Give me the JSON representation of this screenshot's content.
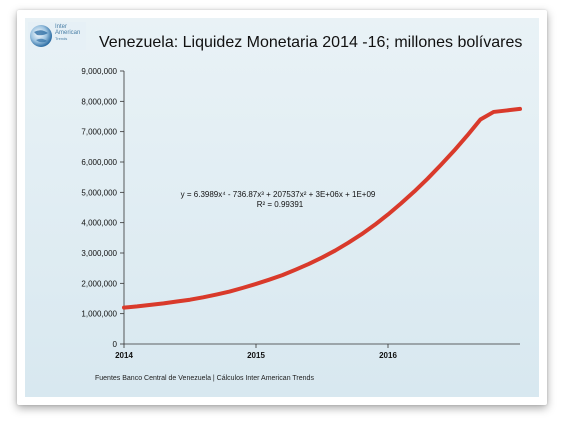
{
  "logo": {
    "lines": [
      "Inter",
      "American",
      "Trends"
    ]
  },
  "chart_data": {
    "type": "line",
    "title": "Venezuela: Liquidez Monetaria 2014 -16; millones bolívares",
    "xlabel": "",
    "ylabel": "",
    "ylim": [
      0,
      9000000
    ],
    "xlim": [
      2014,
      2017.0
    ],
    "yticks": [
      "0",
      "1,000,000",
      "2,000,000",
      "3,000,000",
      "4,000,000",
      "5,000,000",
      "6,000,000",
      "7,000,000",
      "8,000,000",
      "9,000,000"
    ],
    "ytick_values": [
      0,
      1000000,
      2000000,
      3000000,
      4000000,
      5000000,
      6000000,
      7000000,
      8000000,
      9000000
    ],
    "xticks": [
      "2014",
      "2015",
      "2016"
    ],
    "xtick_values": [
      2014,
      2015,
      2016
    ],
    "grid": false,
    "trendline": {
      "equation": "y = 6.3989x⁴ - 736.87x³ + 207537x² + 3E+06x + 1E+09",
      "r_squared": "R² = 0.99391",
      "color": "#d93a2b"
    },
    "series": [
      {
        "color": "#d93a2b",
        "x": [
          2014.0,
          2014.1,
          2014.2,
          2014.3,
          2014.4,
          2014.5,
          2014.6,
          2014.7,
          2014.8,
          2014.9,
          2015.0,
          2015.1,
          2015.2,
          2015.3,
          2015.4,
          2015.5,
          2015.6,
          2015.7,
          2015.8,
          2015.9,
          2016.0,
          2016.1,
          2016.2,
          2016.3,
          2016.4,
          2016.5,
          2016.6,
          2016.7,
          2016.8,
          2016.9,
          2017.0
        ],
        "values": [
          1200000,
          1240000,
          1290000,
          1340000,
          1400000,
          1460000,
          1540000,
          1630000,
          1730000,
          1850000,
          1980000,
          2120000,
          2270000,
          2450000,
          2640000,
          2850000,
          3080000,
          3340000,
          3620000,
          3930000,
          4270000,
          4640000,
          5030000,
          5450000,
          5900000,
          6370000,
          6870000,
          7400000,
          7650000,
          7700000,
          7750000
        ]
      }
    ]
  },
  "source": "Fuentes  Banco Central de Venezuela | Cálculos Inter American Trends"
}
